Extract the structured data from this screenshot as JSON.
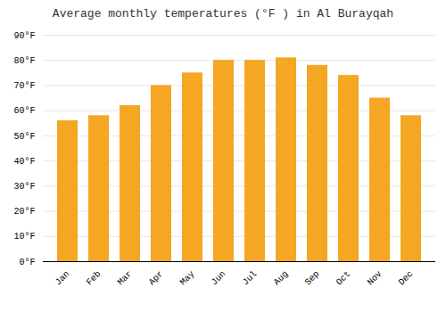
{
  "chart_data": {
    "type": "bar",
    "title": "Average monthly temperatures (°F ) in Al Burayqah",
    "categories": [
      "Jan",
      "Feb",
      "Mar",
      "Apr",
      "May",
      "Jun",
      "Jul",
      "Aug",
      "Sep",
      "Oct",
      "Nov",
      "Dec"
    ],
    "values": [
      56,
      58,
      62,
      70,
      75,
      80,
      80,
      81,
      78,
      74,
      65,
      58
    ],
    "color": "#F5A623",
    "ylim": [
      0,
      90
    ],
    "yticks": [
      {
        "value": 0,
        "label": "0°F"
      },
      {
        "value": 10,
        "label": "10°F"
      },
      {
        "value": 20,
        "label": "20°F"
      },
      {
        "value": 30,
        "label": "30°F"
      },
      {
        "value": 40,
        "label": "40°F"
      },
      {
        "value": 50,
        "label": "50°F"
      },
      {
        "value": 60,
        "label": "60°F"
      },
      {
        "value": 70,
        "label": "70°F"
      },
      {
        "value": 80,
        "label": "80°F"
      },
      {
        "value": 90,
        "label": "90°F"
      }
    ],
    "grid": true
  }
}
